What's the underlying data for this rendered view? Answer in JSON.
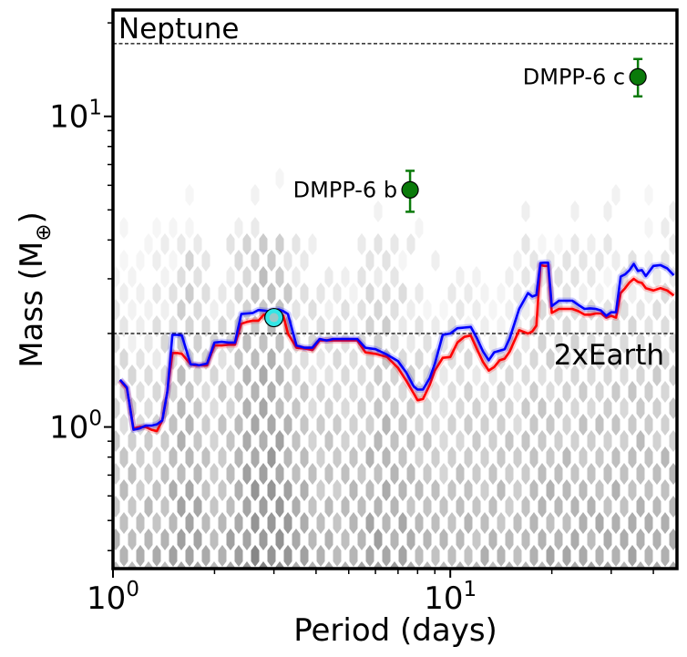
{
  "chart_data": {
    "type": "line",
    "title": "",
    "xlabel": "Period (days)",
    "ylabel_main": "Mass (M",
    "ylabel_sub": "⊕",
    "ylabel_close": ")",
    "x_scale": "log",
    "y_scale": "log",
    "xlim": [
      1.0,
      47.0
    ],
    "ylim": [
      0.35,
      22.0
    ],
    "x_ticks": [
      {
        "value": 1,
        "base": "10",
        "exp": "0"
      },
      {
        "value": 10,
        "base": "10",
        "exp": "1"
      }
    ],
    "y_ticks": [
      {
        "value": 1,
        "base": "10",
        "exp": "0"
      },
      {
        "value": 10,
        "base": "10",
        "exp": "1"
      }
    ],
    "reference_lines": [
      {
        "name": "Neptune",
        "y": 17.15
      },
      {
        "name": "2xEarth",
        "y": 2.0
      }
    ],
    "series": [
      {
        "name": "red limit",
        "color": "#ff0000",
        "x": [
          1.05,
          1.1,
          1.15,
          1.2,
          1.25,
          1.3,
          1.35,
          1.4,
          1.45,
          1.5,
          1.55,
          1.6,
          1.7,
          1.75,
          1.8,
          1.9,
          2.0,
          2.1,
          2.2,
          2.3,
          2.4,
          2.5,
          2.6,
          2.7,
          2.8,
          2.9,
          3.0,
          3.1,
          3.2,
          3.3,
          3.5,
          3.7,
          3.9,
          4.1,
          4.3,
          4.5,
          4.7,
          5.0,
          5.3,
          5.6,
          6.0,
          6.5,
          7.0,
          7.4,
          7.8,
          8.0,
          8.3,
          8.7,
          9.0,
          9.5,
          10.0,
          10.5,
          11.0,
          11.5,
          12.0,
          12.5,
          13.0,
          13.5,
          14.0,
          14.5,
          15.0,
          16.0,
          17.0,
          17.5,
          18.0,
          18.5,
          19.0,
          19.5,
          20.0,
          21.0,
          22.0,
          23.0,
          24.0,
          25.0,
          26.0,
          27.0,
          28.0,
          29.0,
          30.0,
          31.0,
          32.0,
          33.0,
          34.0,
          35.0,
          36.0,
          37.0,
          38.0,
          40.0,
          42.0,
          44.0,
          46.0
        ],
        "y": [
          1.41,
          1.33,
          0.99,
          1.0,
          1.0,
          0.98,
          0.97,
          1.05,
          1.3,
          1.73,
          1.73,
          1.72,
          1.59,
          1.58,
          1.58,
          1.58,
          1.83,
          1.83,
          1.84,
          1.84,
          2.15,
          2.18,
          2.2,
          2.2,
          2.3,
          2.3,
          2.3,
          2.3,
          2.28,
          2.0,
          1.8,
          1.79,
          1.77,
          1.9,
          1.9,
          1.9,
          1.9,
          1.9,
          1.9,
          1.74,
          1.72,
          1.68,
          1.55,
          1.41,
          1.28,
          1.22,
          1.23,
          1.37,
          1.52,
          1.67,
          1.68,
          1.87,
          1.95,
          1.97,
          1.78,
          1.62,
          1.52,
          1.56,
          1.64,
          1.66,
          1.75,
          2.05,
          2.0,
          2.03,
          2.12,
          3.32,
          3.3,
          3.3,
          2.33,
          2.4,
          2.4,
          2.4,
          2.36,
          2.3,
          2.3,
          2.32,
          2.32,
          2.25,
          2.28,
          2.25,
          2.7,
          2.8,
          2.92,
          3.0,
          2.93,
          2.91,
          2.8,
          2.75,
          2.8,
          2.75,
          2.65
        ]
      },
      {
        "name": "blue limit",
        "color": "#0000ff",
        "x": [
          1.05,
          1.1,
          1.15,
          1.2,
          1.25,
          1.3,
          1.35,
          1.4,
          1.45,
          1.5,
          1.55,
          1.6,
          1.7,
          1.75,
          1.8,
          1.9,
          2.0,
          2.1,
          2.2,
          2.3,
          2.4,
          2.5,
          2.6,
          2.7,
          2.8,
          2.9,
          3.0,
          3.1,
          3.2,
          3.3,
          3.5,
          3.7,
          3.9,
          4.1,
          4.3,
          4.5,
          4.7,
          5.0,
          5.3,
          5.6,
          6.0,
          6.5,
          7.0,
          7.4,
          7.8,
          8.0,
          8.3,
          8.7,
          9.0,
          9.5,
          10.0,
          10.5,
          11.0,
          11.5,
          12.0,
          12.5,
          13.0,
          13.5,
          14.0,
          14.5,
          15.0,
          16.0,
          17.0,
          17.5,
          18.0,
          18.5,
          19.0,
          19.5,
          20.0,
          21.0,
          22.0,
          23.0,
          24.0,
          25.0,
          26.0,
          27.0,
          28.0,
          29.0,
          30.0,
          31.0,
          32.0,
          33.0,
          34.0,
          35.0,
          36.0,
          37.0,
          38.0,
          40.0,
          42.0,
          44.0,
          46.0
        ],
        "y": [
          1.42,
          1.34,
          0.98,
          0.99,
          1.01,
          1.01,
          1.02,
          1.05,
          1.3,
          1.98,
          1.98,
          1.97,
          1.59,
          1.59,
          1.58,
          1.6,
          1.87,
          1.88,
          1.87,
          1.87,
          2.31,
          2.32,
          2.33,
          2.38,
          2.37,
          2.36,
          2.38,
          2.39,
          2.36,
          2.31,
          1.83,
          1.8,
          1.8,
          1.92,
          1.9,
          1.92,
          1.92,
          1.92,
          1.92,
          1.8,
          1.78,
          1.71,
          1.63,
          1.5,
          1.35,
          1.32,
          1.32,
          1.44,
          1.6,
          1.98,
          2.0,
          2.08,
          2.09,
          2.1,
          1.93,
          1.75,
          1.64,
          1.74,
          1.76,
          1.78,
          1.93,
          2.4,
          2.7,
          2.63,
          2.66,
          3.37,
          3.38,
          3.38,
          2.45,
          2.55,
          2.55,
          2.55,
          2.47,
          2.4,
          2.41,
          2.4,
          2.37,
          2.28,
          2.34,
          2.34,
          3.05,
          3.1,
          3.2,
          3.35,
          3.18,
          3.2,
          3.06,
          3.3,
          3.32,
          3.24,
          3.08
        ]
      }
    ],
    "points": [
      {
        "name": "DMPP-6 b",
        "x": 7.6,
        "y": 5.8,
        "yerr_low": 4.93,
        "yerr_high": 6.68,
        "color": "#0a7a0a"
      },
      {
        "name": "DMPP-6 c",
        "x": 36.0,
        "y": 13.4,
        "yerr_low": 11.6,
        "yerr_high": 15.3,
        "color": "#0a7a0a"
      }
    ],
    "highlight": {
      "name": "highlighted point",
      "x": 3.0,
      "y": 2.25,
      "color": "#33e6e6"
    },
    "colors": {
      "red": "#ff0000",
      "blue": "#0000ff",
      "planet": "#0a7a0a",
      "highlight": "#33e6e6"
    }
  }
}
